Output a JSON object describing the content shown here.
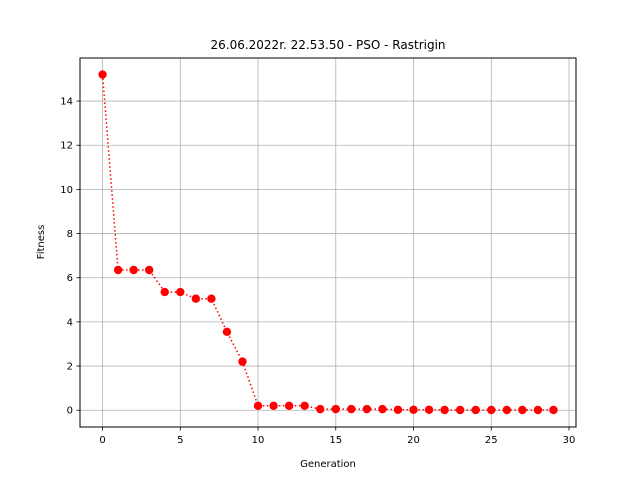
{
  "chart_data": {
    "type": "line",
    "title": "26.06.2022r. 22.53.50 - PSO - Rastrigin",
    "xlabel": "Generation",
    "ylabel": "Fitness",
    "xlim": [
      -1.45,
      30.45
    ],
    "ylim": [
      -0.76,
      15.95
    ],
    "xticks": [
      0,
      5,
      10,
      15,
      20,
      25,
      30
    ],
    "yticks": [
      0,
      2,
      4,
      6,
      8,
      10,
      12,
      14
    ],
    "grid": true,
    "x": [
      0,
      1,
      2,
      3,
      4,
      5,
      6,
      7,
      8,
      9,
      10,
      11,
      12,
      13,
      14,
      15,
      16,
      17,
      18,
      19,
      20,
      21,
      22,
      23,
      24,
      25,
      26,
      27,
      28,
      29
    ],
    "series": [
      {
        "values": [
          15.2,
          6.35,
          6.35,
          6.35,
          5.35,
          5.35,
          5.05,
          5.05,
          3.55,
          2.2,
          0.2,
          0.2,
          0.2,
          0.2,
          0.05,
          0.05,
          0.05,
          0.05,
          0.05,
          0.02,
          0.02,
          0.02,
          0.01,
          0.01,
          0.01,
          0.01,
          0.01,
          0.01,
          0.01,
          0.01
        ],
        "color": "#ff0000",
        "line_style": "dotted",
        "marker": "circle"
      }
    ]
  }
}
